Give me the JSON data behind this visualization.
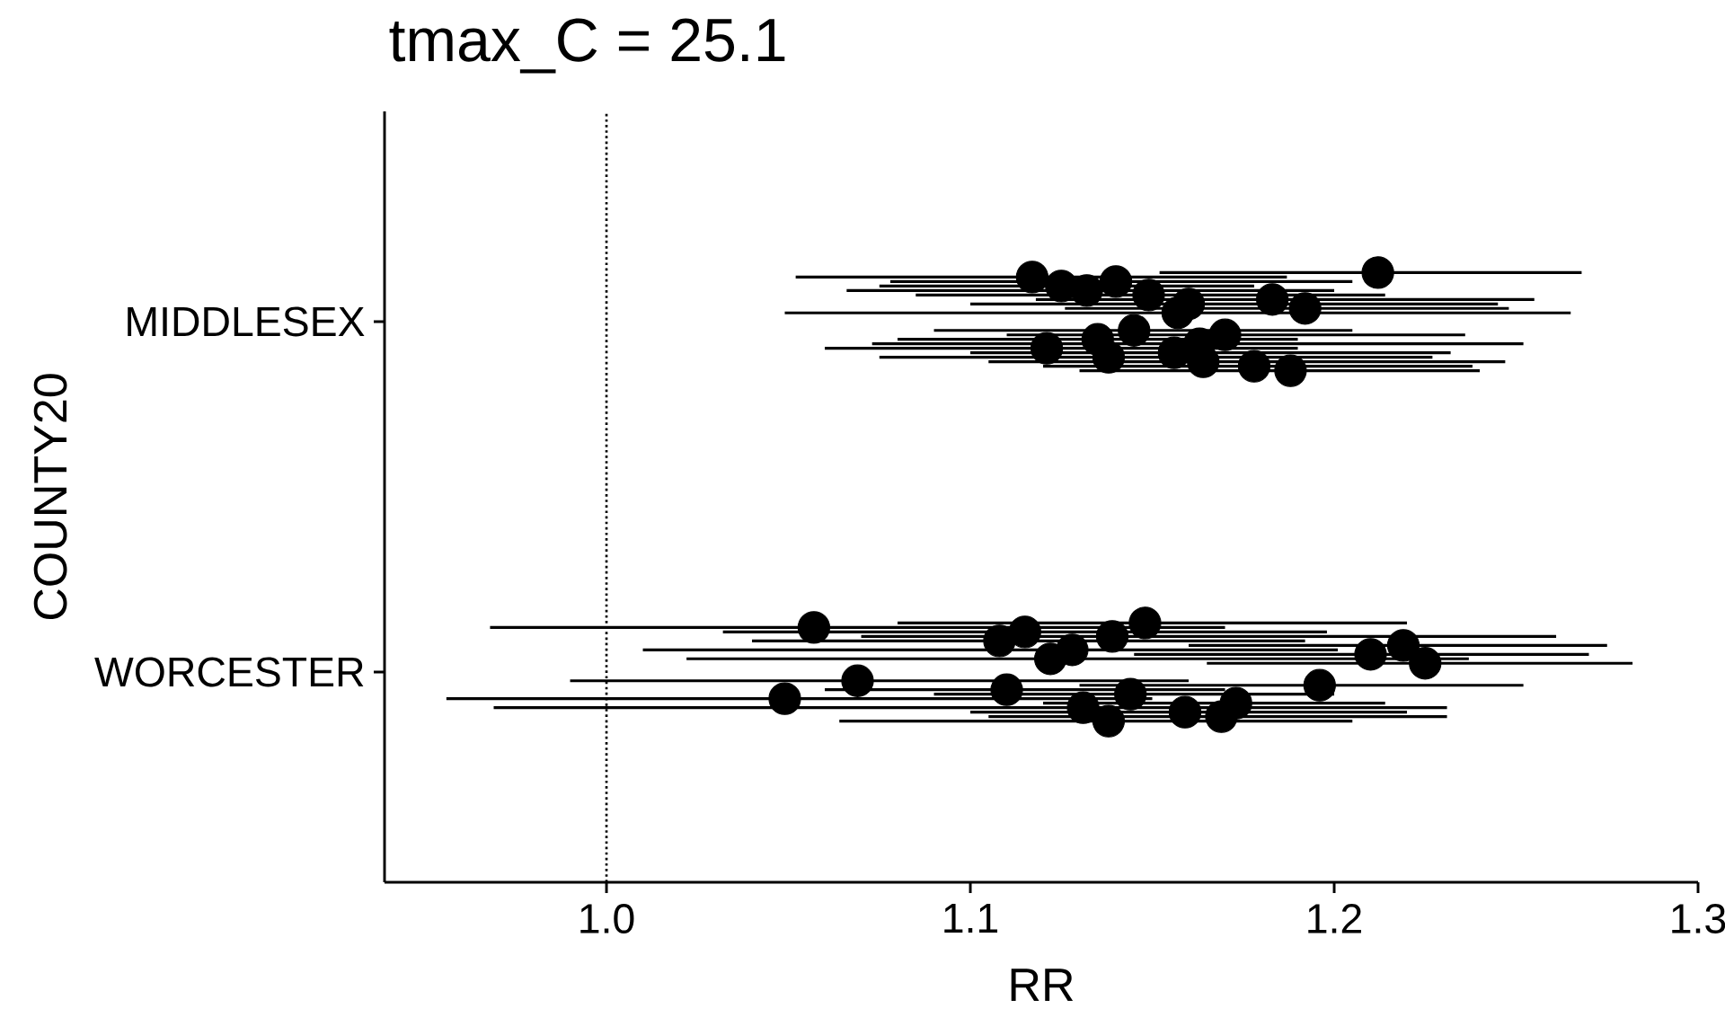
{
  "chart_data": {
    "type": "scatter",
    "title": "tmax_C = 25.1",
    "xlabel": "RR",
    "ylabel": "COUNTY20",
    "orientation": "horizontal",
    "categories": [
      "MIDDLESEX",
      "WORCESTER"
    ],
    "xlim": [
      0.939,
      1.3
    ],
    "xticks": [
      {
        "value": 1,
        "label": "1.0"
      },
      1.1,
      1.2,
      1.3
    ],
    "marker": "circle",
    "ref_lines": [
      {
        "axis": "x",
        "value": 1,
        "color": "#000000",
        "line_style": "dotted"
      }
    ],
    "series": [
      {
        "color": "#000000",
        "values": [
          1.212,
          1.148
        ],
        "errors": [
          [
            1.152,
            1.268
          ],
          [
            1.08,
            1.22
          ]
        ]
      },
      {
        "color": "#000000",
        "values": [
          1.117,
          1.057
        ],
        "errors": [
          [
            1.052,
            1.187
          ],
          [
            0.968,
            1.17
          ]
        ]
      },
      {
        "color": "#000000",
        "values": [
          1.14,
          1.115
        ],
        "errors": [
          [
            1.078,
            1.205
          ],
          [
            1.032,
            1.198
          ]
        ]
      },
      {
        "color": "#000000",
        "values": [
          1.125,
          1.139
        ],
        "errors": [
          [
            1.075,
            1.178
          ],
          [
            1.07,
            1.261
          ]
        ]
      },
      {
        "color": "#000000",
        "values": [
          1.132,
          1.108
        ],
        "errors": [
          [
            1.066,
            1.2
          ],
          [
            1.04,
            1.192
          ]
        ]
      },
      {
        "color": "#000000",
        "values": [
          1.149,
          1.219
        ],
        "errors": [
          [
            1.085,
            1.214
          ],
          [
            1.16,
            1.275
          ]
        ]
      },
      {
        "color": "#000000",
        "values": [
          1.183,
          1.128
        ],
        "errors": [
          [
            1.118,
            1.255
          ],
          [
            1.01,
            1.201
          ]
        ]
      },
      {
        "color": "#000000",
        "values": [
          1.16,
          1.21
        ],
        "errors": [
          [
            1.1,
            1.245
          ],
          [
            1.145,
            1.27
          ]
        ]
      },
      {
        "color": "#000000",
        "values": [
          1.192,
          1.122
        ],
        "errors": [
          [
            1.126,
            1.248
          ],
          [
            1.022,
            1.237
          ]
        ]
      },
      {
        "color": "#000000",
        "values": [
          1.157,
          1.225
        ],
        "errors": [
          [
            1.049,
            1.265
          ],
          [
            1.165,
            1.282
          ]
        ]
      },
      {
        "color": "#000000",
        "values": [
          1.145,
          1.069
        ],
        "errors": [
          [
            1.09,
            1.205
          ],
          [
            0.99,
            1.16
          ]
        ]
      },
      {
        "color": "#000000",
        "values": [
          1.17,
          1.196
        ],
        "errors": [
          [
            1.11,
            1.236
          ],
          [
            1.13,
            1.252
          ]
        ]
      },
      {
        "color": "#000000",
        "values": [
          1.135,
          1.11
        ],
        "errors": [
          [
            1.08,
            1.19
          ],
          [
            1.06,
            1.17
          ]
        ]
      },
      {
        "color": "#000000",
        "values": [
          1.163,
          1.144
        ],
        "errors": [
          [
            1.073,
            1.252
          ],
          [
            1.09,
            1.2
          ]
        ]
      },
      {
        "color": "#000000",
        "values": [
          1.121,
          1.049
        ],
        "errors": [
          [
            1.06,
            1.19
          ],
          [
            0.956,
            1.15
          ]
        ]
      },
      {
        "color": "#000000",
        "values": [
          1.156,
          1.173
        ],
        "errors": [
          [
            1.1,
            1.232
          ],
          [
            1.12,
            1.214
          ]
        ]
      },
      {
        "color": "#000000",
        "values": [
          1.138,
          1.131
        ],
        "errors": [
          [
            1.075,
            1.227
          ],
          [
            0.969,
            1.231
          ]
        ]
      },
      {
        "color": "#000000",
        "values": [
          1.164,
          1.159
        ],
        "errors": [
          [
            1.105,
            1.247
          ],
          [
            1.1,
            1.22
          ]
        ]
      },
      {
        "color": "#000000",
        "values": [
          1.178,
          1.169
        ],
        "errors": [
          [
            1.12,
            1.238
          ],
          [
            1.105,
            1.231
          ]
        ]
      },
      {
        "color": "#000000",
        "values": [
          1.188,
          1.138
        ],
        "errors": [
          [
            1.13,
            1.24
          ],
          [
            1.064,
            1.205
          ]
        ]
      }
    ]
  }
}
